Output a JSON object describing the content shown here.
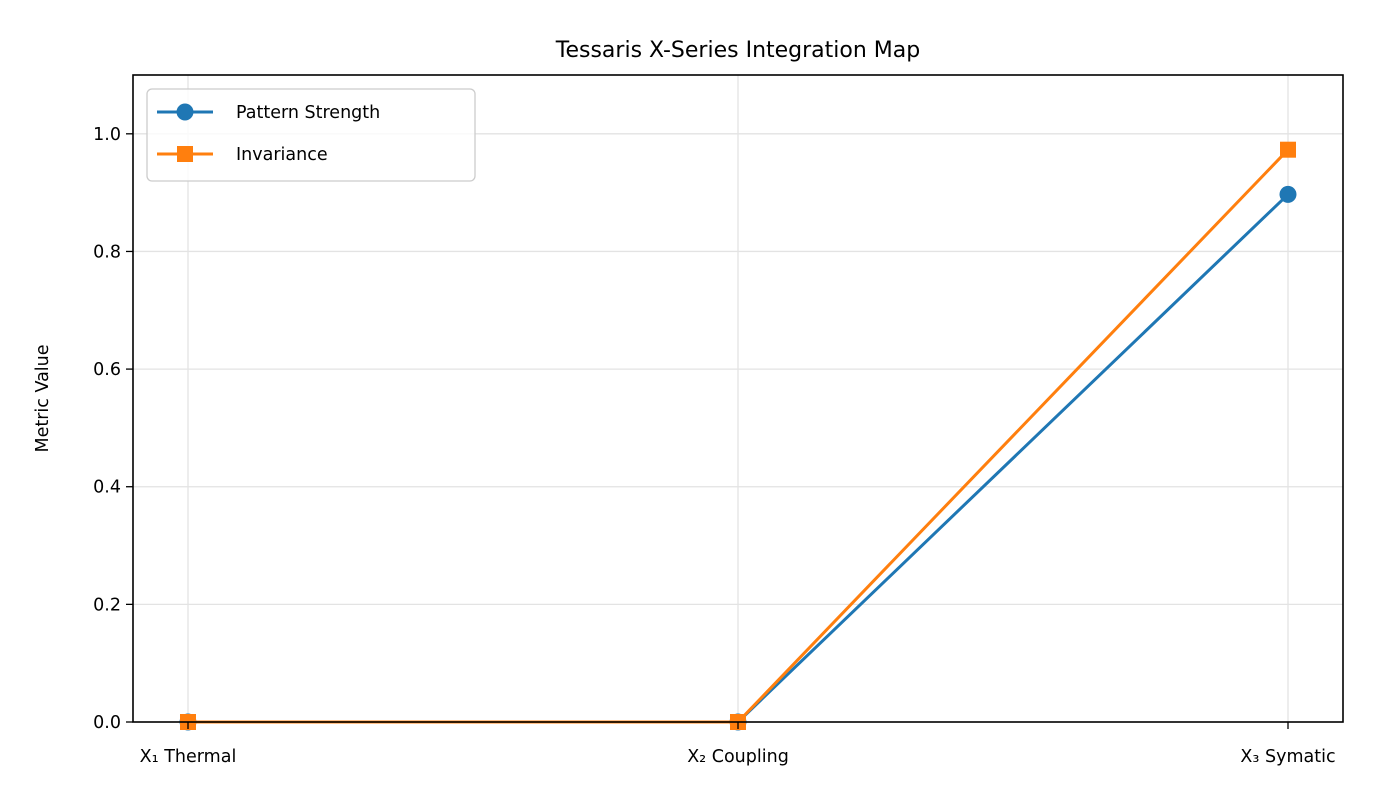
{
  "chart_data": {
    "type": "line",
    "title": "Tessaris X-Series Integration Map",
    "xlabel": "",
    "ylabel": "Metric Value",
    "categories": [
      "X₁ Thermal",
      "X₂ Coupling",
      "X₃ Symatic"
    ],
    "ylim": [
      0,
      1.1
    ],
    "yticks": [
      0.0,
      0.2,
      0.4,
      0.6,
      0.8,
      1.0
    ],
    "ytick_labels": [
      "0.0",
      "0.2",
      "0.4",
      "0.6",
      "0.8",
      "1.0"
    ],
    "grid": true,
    "legend_position": "upper-left",
    "series": [
      {
        "name": "Pattern Strength",
        "values": [
          0.0,
          0.0,
          0.897
        ],
        "color": "#1f77b4",
        "marker": "circle"
      },
      {
        "name": "Invariance",
        "values": [
          0.0,
          0.0,
          0.973
        ],
        "color": "#ff7f0e",
        "marker": "square"
      }
    ]
  }
}
